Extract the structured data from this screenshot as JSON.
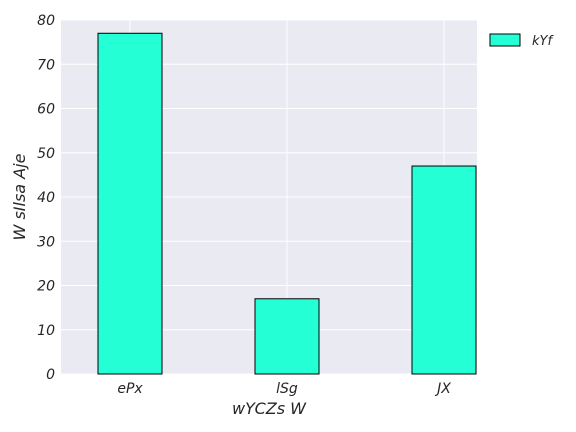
{
  "chart_data": {
    "type": "bar",
    "title": "",
    "xlabel": "wYCZs W",
    "ylabel": "W sIlsa Aje",
    "categories": [
      "ePx",
      "lSg",
      "JX"
    ],
    "series": [
      {
        "name": "kYf",
        "values": [
          77,
          17,
          47
        ],
        "color": "#24ffd6"
      }
    ],
    "ylim": [
      0,
      80
    ],
    "yticks": [
      0,
      10,
      20,
      30,
      40,
      50,
      60,
      70,
      80
    ],
    "grid": true,
    "legend_position": "upper-right-outside",
    "colors": {
      "background": "#eaeaf2",
      "grid": "#ffffff",
      "bar_edge": "#000000"
    }
  }
}
